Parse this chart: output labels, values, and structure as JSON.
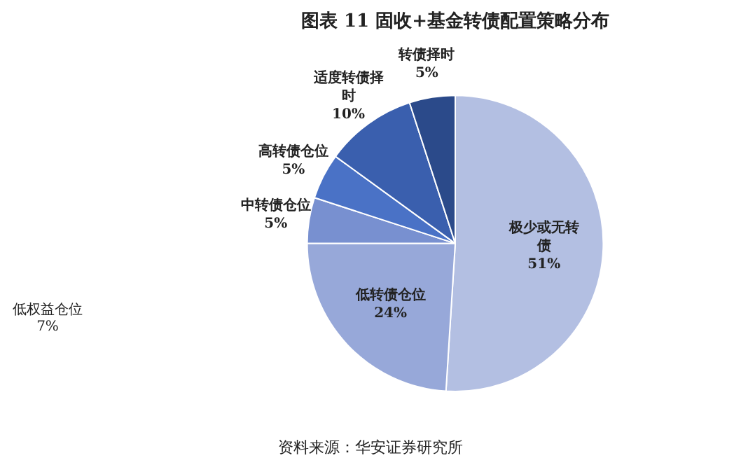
{
  "chart_data": {
    "type": "pie",
    "title": "图表 11 固收+基金转债配置策略分布",
    "categories": [
      "极少或无转债",
      "低转债仓位",
      "中转债仓位",
      "高转债仓位",
      "适度转债择时",
      "转债择时"
    ],
    "values": [
      51,
      24,
      5,
      5,
      10,
      5
    ],
    "colors": [
      "#b3bfe2",
      "#97a8d9",
      "#7890d0",
      "#4a72c6",
      "#3a5fae",
      "#2b4a8a"
    ],
    "value_labels": [
      "51%",
      "24%",
      "5%",
      "5%",
      "10%",
      "5%"
    ],
    "annotations": [
      "低权益仓位\n7%",
      "资料来源：华安证券研究所"
    ]
  }
}
